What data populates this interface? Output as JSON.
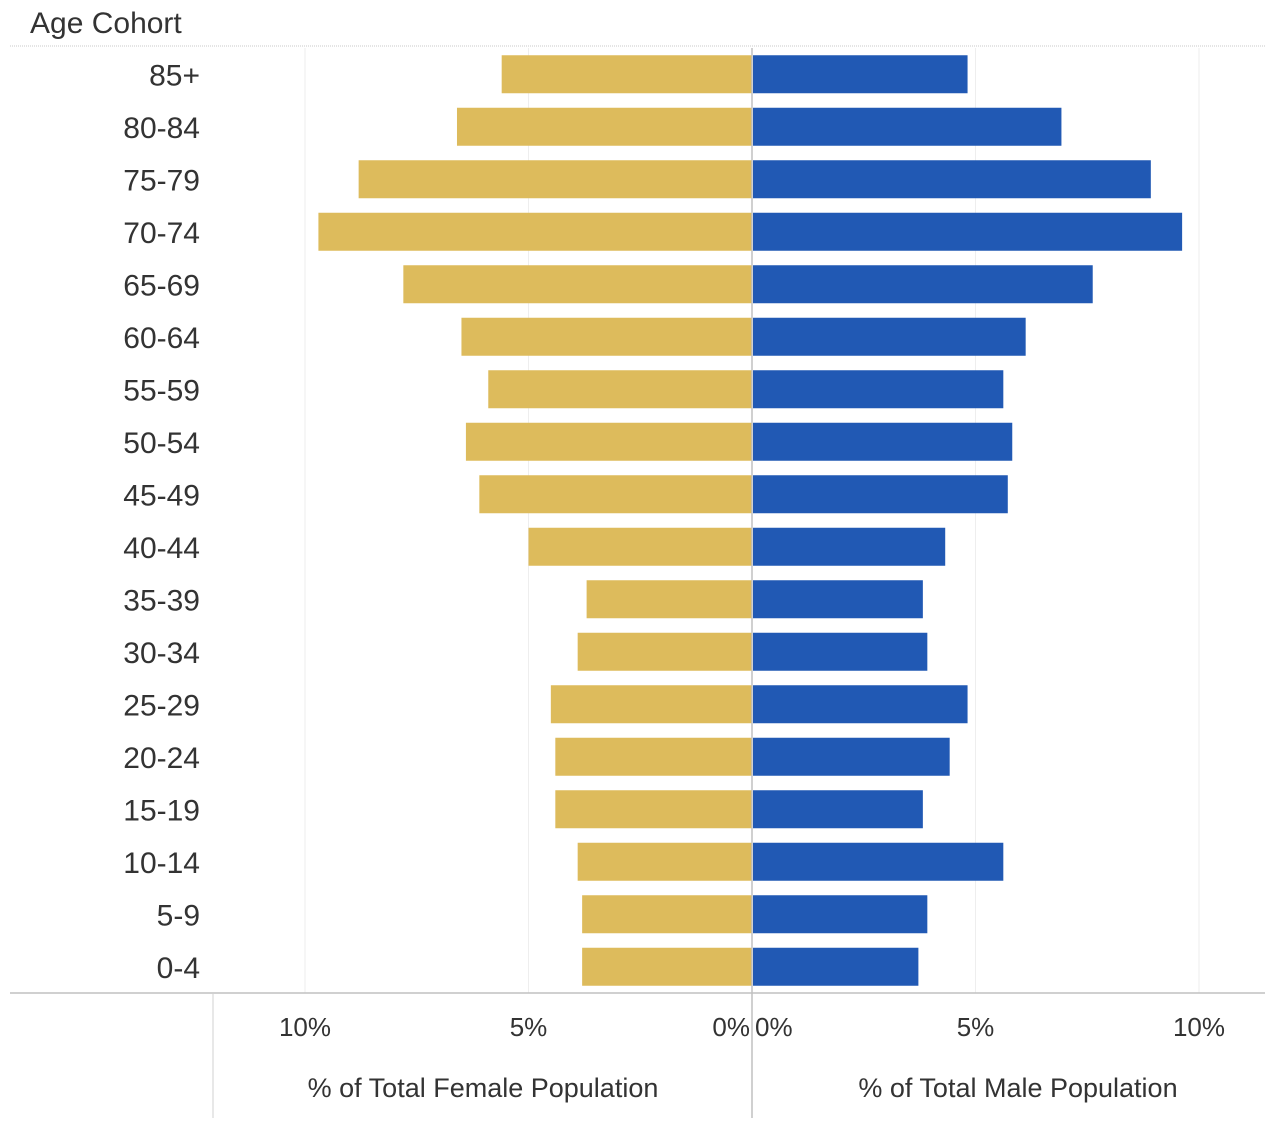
{
  "chart_data": {
    "type": "bar",
    "row_header": "Age Cohort",
    "categories": [
      "85+",
      "80-84",
      "75-79",
      "70-74",
      "65-69",
      "60-64",
      "55-59",
      "50-54",
      "45-49",
      "40-44",
      "35-39",
      "30-34",
      "25-29",
      "20-24",
      "15-19",
      "10-14",
      "5-9",
      "0-4"
    ],
    "series": [
      {
        "axis_title": "% of Total Female Population",
        "color": "#DDBB5C",
        "direction": "left",
        "values": [
          5.6,
          6.6,
          8.8,
          9.7,
          7.8,
          6.5,
          5.9,
          6.4,
          6.1,
          5.0,
          3.7,
          3.9,
          4.5,
          4.4,
          4.4,
          3.9,
          3.8,
          3.8
        ]
      },
      {
        "axis_title": "% of Total Male Population",
        "color": "#2159B4",
        "direction": "right",
        "values": [
          4.8,
          6.9,
          8.9,
          9.6,
          7.6,
          6.1,
          5.6,
          5.8,
          5.7,
          4.3,
          3.8,
          3.9,
          4.8,
          4.4,
          3.8,
          5.6,
          3.9,
          3.7
        ]
      }
    ],
    "xlim": [
      0,
      10
    ],
    "x_ticks": [
      {
        "value": 10,
        "label": "10%"
      },
      {
        "value": 5,
        "label": "5%"
      },
      {
        "value": 0,
        "label": "0%"
      }
    ],
    "grid": true
  }
}
